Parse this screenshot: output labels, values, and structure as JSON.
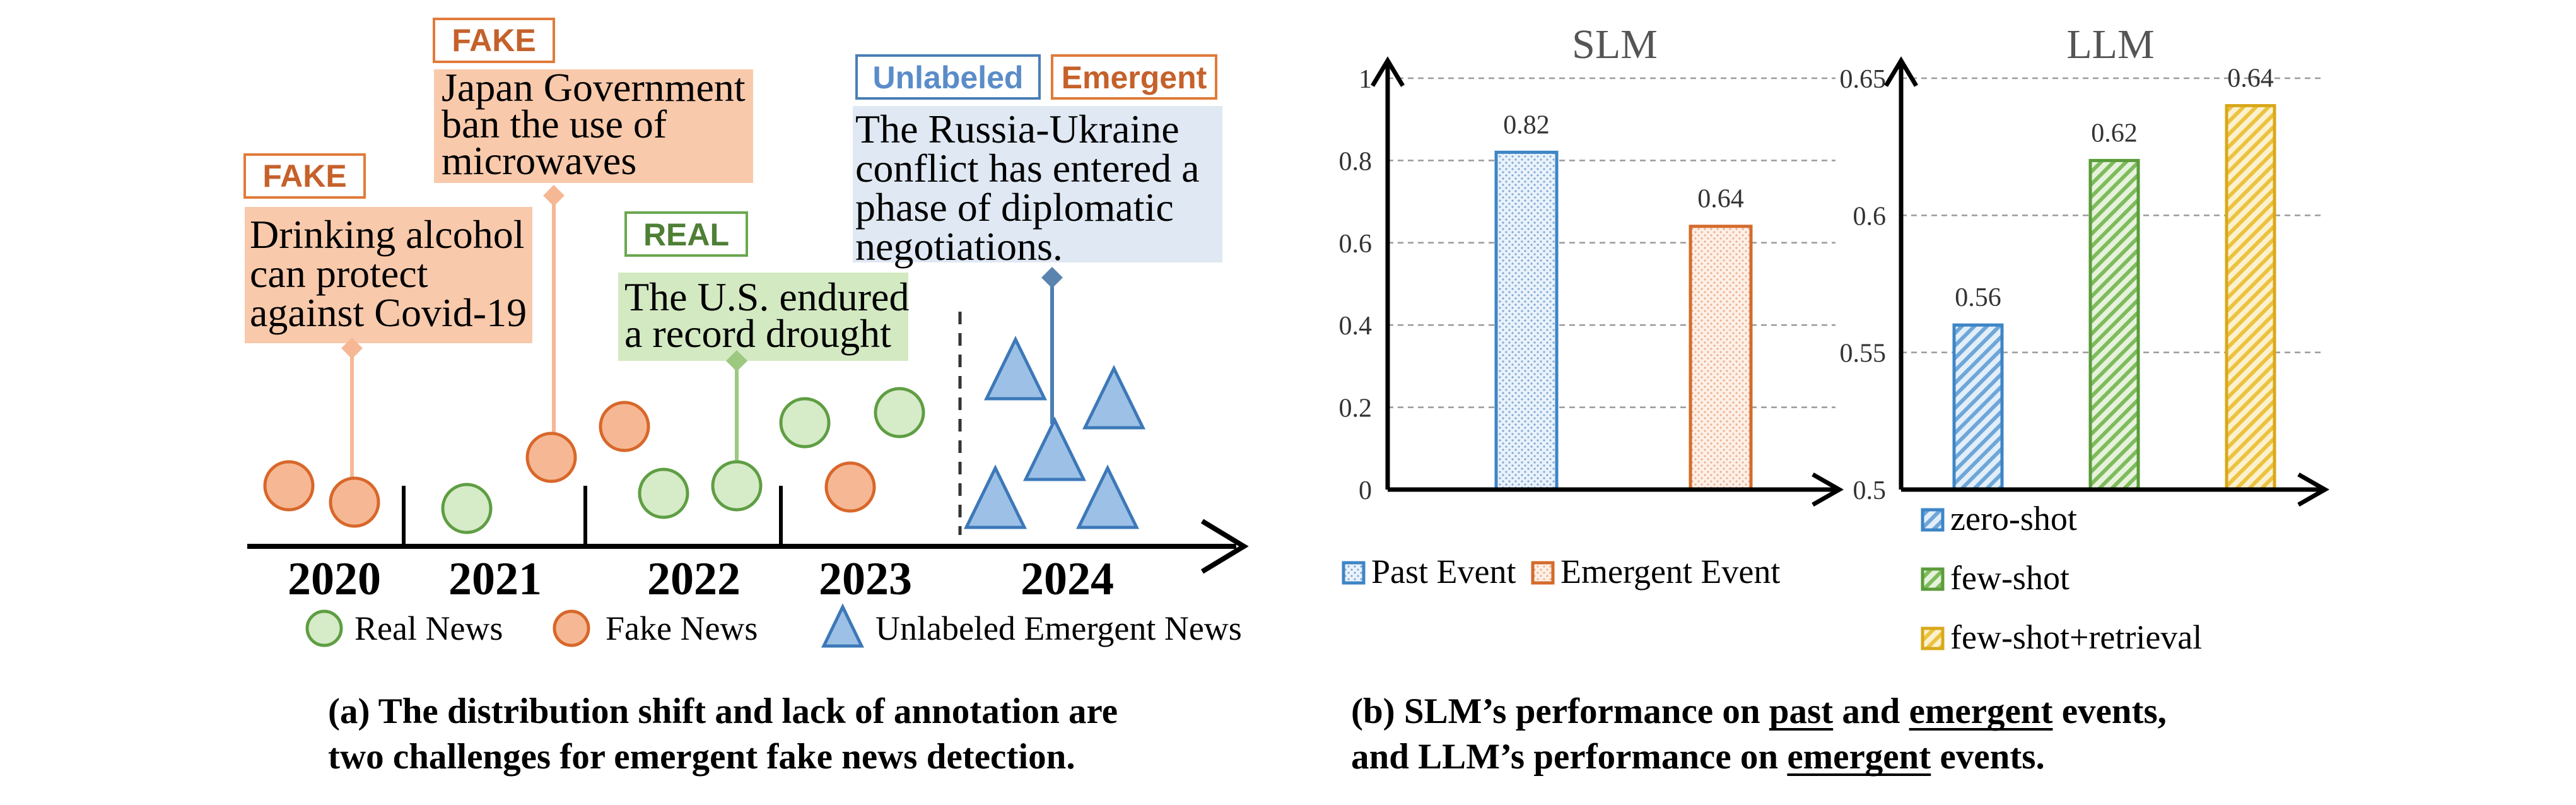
{
  "panel_a": {
    "years": [
      "2020",
      "2021",
      "2022",
      "2023",
      "2024"
    ],
    "events": [
      {
        "tag": "FAKE",
        "lines": [
          "Drinking alcohol",
          "can protect",
          "against Covid-19"
        ]
      },
      {
        "tag": "FAKE",
        "lines": [
          "Japan Government",
          "ban the use of",
          "microwaves"
        ]
      },
      {
        "tag": "REAL",
        "lines": [
          "The U.S. endured",
          "a record drought"
        ]
      },
      {
        "tags": [
          "Unlabeled",
          "Emergent"
        ],
        "lines": [
          "The Russia-Ukraine",
          "conflict has entered a",
          "phase of diplomatic",
          "negotiations."
        ]
      }
    ],
    "legend": [
      "Real News",
      "Fake News",
      "Unlabeled Emergent News"
    ],
    "caption": [
      "(a) The distribution shift and lack of annotation are",
      "two challenges for emergent fake news detection."
    ],
    "colors": {
      "real": "#6aa84f",
      "fake": "#e07b39",
      "unlabeled": "#4a7fb5",
      "tag_real": "#4e7f35",
      "tag_fake": "#c5612a",
      "tag_unlabeled": "#5a8cc8"
    }
  },
  "chart_data": [
    {
      "type": "bar",
      "title": "SLM",
      "categories": [
        "Past Event",
        "Emergent Event"
      ],
      "values": [
        0.82,
        0.64
      ],
      "ylim": [
        0,
        1
      ],
      "yticks": [
        "0",
        "0.2",
        "0.4",
        "0.6",
        "0.8",
        "1"
      ],
      "data_labels": [
        "0.82",
        "0.64"
      ],
      "legend": [
        "Past Event",
        "Emergent Event"
      ],
      "legend_position": "bottom",
      "grid": true,
      "colors": [
        "#3d85c6",
        "#d46b2c"
      ]
    },
    {
      "type": "bar",
      "title": "LLM",
      "categories": [
        "zero-shot",
        "few-shot",
        "few-shot+retrieval"
      ],
      "values": [
        0.56,
        0.62,
        0.64
      ],
      "ylim": [
        0.5,
        0.65
      ],
      "yticks": [
        "0.5",
        "0.55",
        "0.6",
        "0.65"
      ],
      "data_labels": [
        "0.56",
        "0.62",
        "0.64"
      ],
      "legend": [
        "zero-shot",
        "few-shot",
        "few-shot+retrieval"
      ],
      "legend_position": "bottom",
      "grid": true,
      "colors": [
        "#3d85c6",
        "#5a9c3a",
        "#d9a81a"
      ]
    }
  ],
  "panel_b": {
    "caption_parts": [
      [
        "(b) SLM’s performance on ",
        "past",
        " and ",
        "emergent",
        " events,"
      ],
      [
        "and LLM’s performance on ",
        "emergent",
        " events."
      ]
    ]
  }
}
